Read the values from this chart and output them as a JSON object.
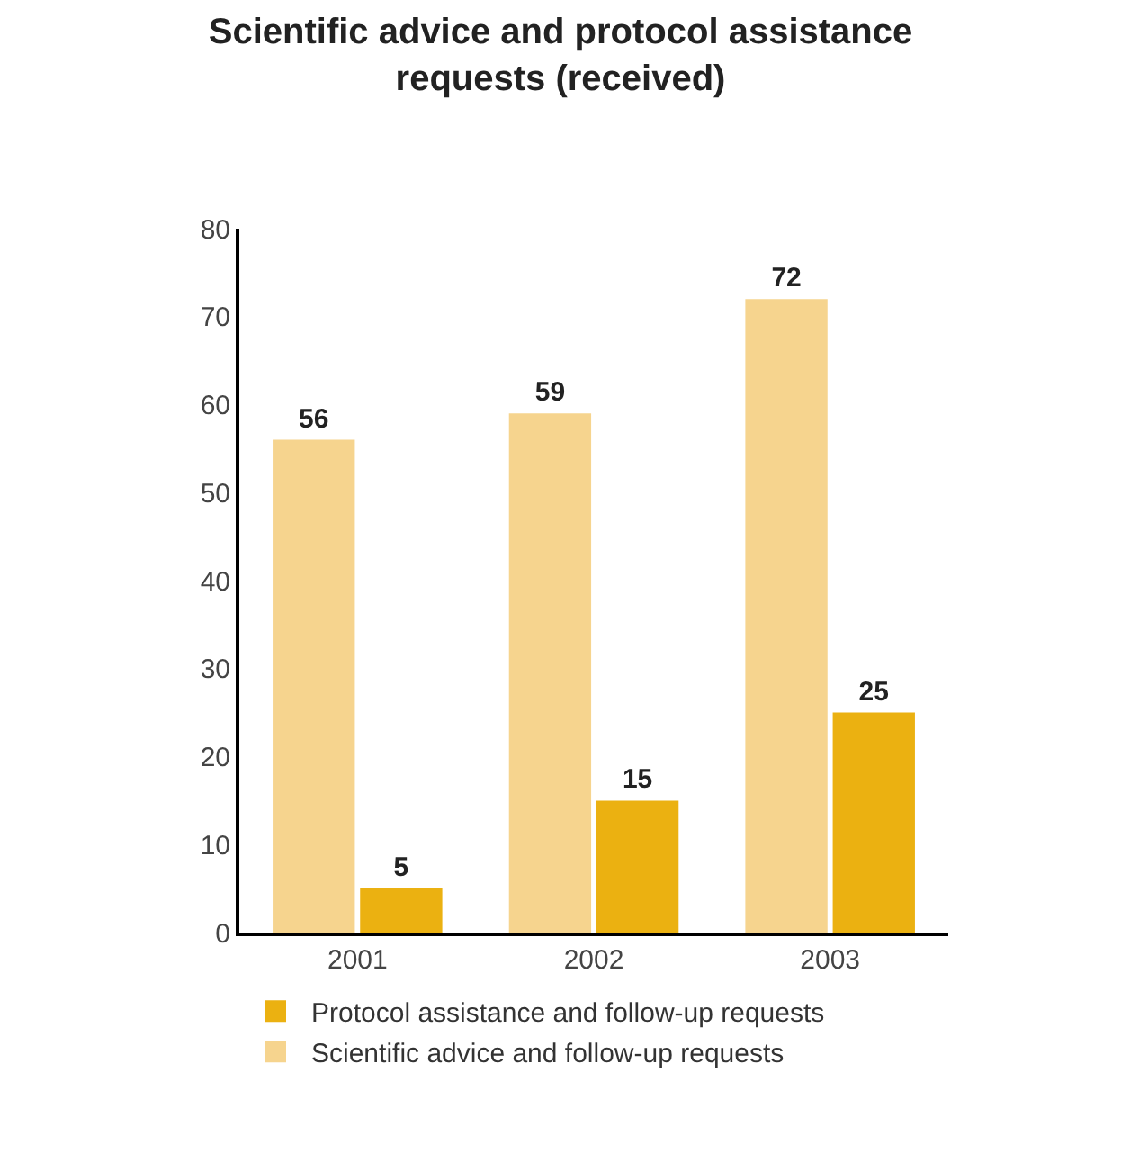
{
  "chart_data": {
    "type": "bar",
    "title": "Scientific advice and protocol assistance requests (received)",
    "categories": [
      "2001",
      "2002",
      "2003"
    ],
    "series": [
      {
        "name": "Scientific advice and follow-up requests",
        "color": "#f6d48e",
        "values": [
          56,
          59,
          72
        ]
      },
      {
        "name": "Protocol assistance and follow-up requests",
        "color": "#ebb111",
        "values": [
          5,
          15,
          25
        ]
      }
    ],
    "ylim": [
      0,
      80
    ],
    "yticks": [
      0,
      10,
      20,
      30,
      40,
      50,
      60,
      70,
      80
    ],
    "legend": "bottom",
    "data_labels": true
  }
}
